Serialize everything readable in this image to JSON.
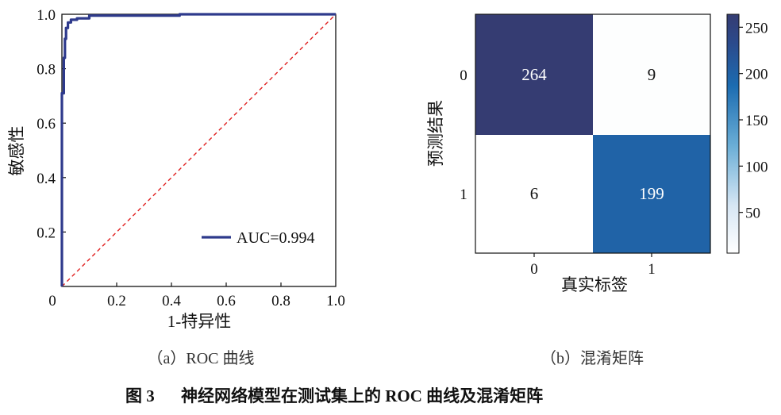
{
  "roc_panel": {
    "caption": "（a）ROC 曲线",
    "legend_label": "AUC=0.994",
    "curve_color": "#2e3a8c",
    "diagonal_color": "#e02020"
  },
  "cm_panel": {
    "caption": "（b）混淆矩阵"
  },
  "figure_caption": {
    "number": "图 3",
    "text": "神经网络模型在测试集上的 ROC 曲线及混淆矩阵"
  },
  "chart_data": [
    {
      "type": "line",
      "xlabel": "1-特异性",
      "ylabel": "敏感性",
      "xlim": [
        0,
        1
      ],
      "ylim": [
        0,
        1
      ],
      "x_ticks": [
        "0",
        "0.2",
        "0.4",
        "0.6",
        "0.8",
        "1.0"
      ],
      "y_ticks": [
        "0",
        "0.2",
        "0.4",
        "0.6",
        "0.8",
        "1.0"
      ],
      "grid": false,
      "legend_position": "bottom-right",
      "series": [
        {
          "name": "AUC=0.994",
          "x": [
            0,
            0,
            0.007,
            0.007,
            0.011,
            0.011,
            0.015,
            0.015,
            0.022,
            0.022,
            0.033,
            0.033,
            0.055,
            0.055,
            0.1,
            0.1,
            0.43,
            0.43,
            1.0
          ],
          "y": [
            0,
            0.71,
            0.71,
            0.84,
            0.84,
            0.91,
            0.91,
            0.95,
            0.95,
            0.97,
            0.97,
            0.98,
            0.98,
            0.985,
            0.985,
            0.995,
            0.995,
            1.0,
            1.0
          ]
        },
        {
          "name": "",
          "x": [
            0,
            1
          ],
          "y": [
            0,
            1
          ]
        }
      ]
    },
    {
      "type": "heatmap",
      "xlabel": "真实标签",
      "ylabel": "预测结果",
      "x_categories": [
        "0",
        "1"
      ],
      "y_categories": [
        "0",
        "1"
      ],
      "values": [
        [
          264,
          9
        ],
        [
          6,
          199
        ]
      ],
      "colorbar_ticks": [
        50,
        100,
        150,
        200,
        250
      ],
      "colorbar_range": [
        6,
        264
      ],
      "colorscale": [
        "#ffffff",
        "#d6e6f4",
        "#6aaed6",
        "#1c6cb1",
        "#2b4a8c",
        "#353c72"
      ]
    }
  ]
}
